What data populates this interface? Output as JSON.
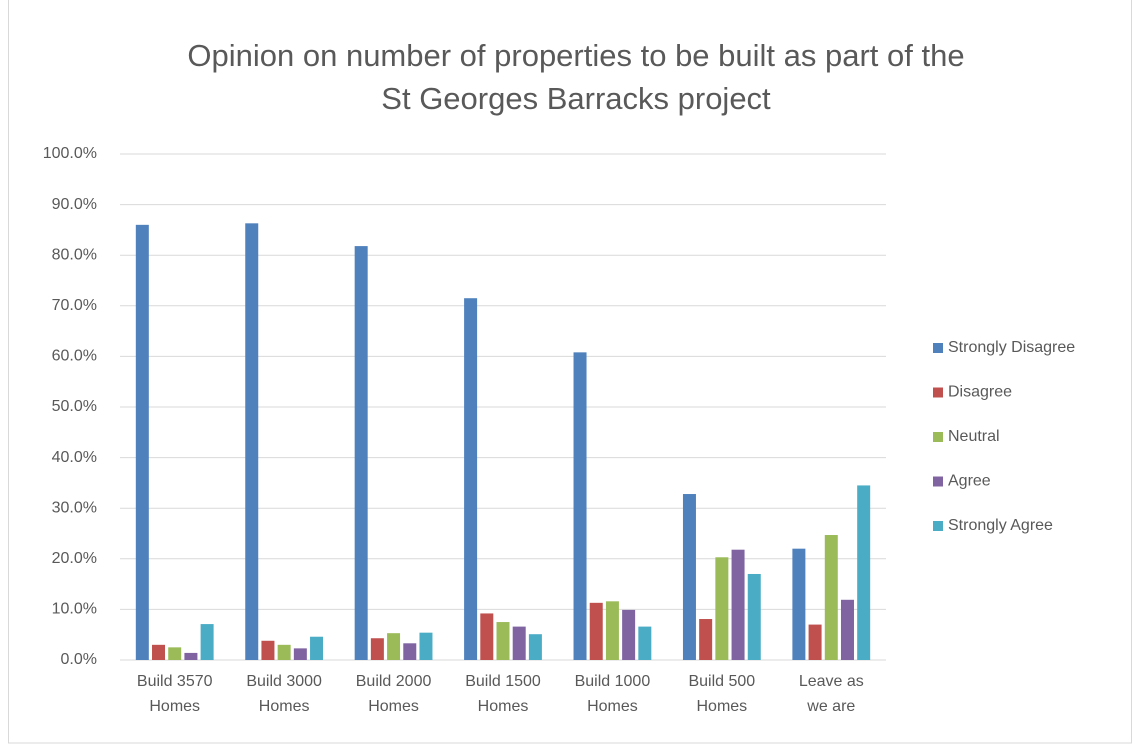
{
  "chart_data": {
    "type": "bar",
    "title": [
      "Opinion on number of properties to be built as part of the",
      "St Georges Barracks project"
    ],
    "categories": [
      [
        "Build 3570",
        "Homes"
      ],
      [
        "Build 3000",
        "Homes"
      ],
      [
        "Build 2000",
        "Homes"
      ],
      [
        "Build 1500",
        "Homes"
      ],
      [
        "Build 1000",
        "Homes"
      ],
      [
        "Build 500",
        "Homes"
      ],
      [
        "Leave as",
        "we are"
      ]
    ],
    "series": [
      {
        "name": "Strongly Disagree",
        "color": "#4f81bd",
        "values": [
          86.0,
          86.3,
          81.8,
          71.5,
          60.8,
          32.8,
          22.0
        ]
      },
      {
        "name": "Disagree",
        "color": "#c0504d",
        "values": [
          3.0,
          3.8,
          4.3,
          9.2,
          11.3,
          8.1,
          7.0
        ]
      },
      {
        "name": "Neutral",
        "color": "#9bbb59",
        "values": [
          2.5,
          3.0,
          5.3,
          7.5,
          11.6,
          20.3,
          24.7
        ]
      },
      {
        "name": "Agree",
        "color": "#8064a2",
        "values": [
          1.4,
          2.3,
          3.3,
          6.6,
          9.9,
          21.8,
          11.9
        ]
      },
      {
        "name": "Strongly Agree",
        "color": "#4bacc6",
        "values": [
          7.1,
          4.6,
          5.4,
          5.1,
          6.6,
          17.0,
          34.5
        ]
      }
    ],
    "ylim": [
      0,
      100
    ],
    "yticks": [
      {
        "value": 0,
        "label": "0.0%"
      },
      {
        "value": 10,
        "label": "10.0%"
      },
      {
        "value": 20,
        "label": "20.0%"
      },
      {
        "value": 30,
        "label": "30.0%"
      },
      {
        "value": 40,
        "label": "40.0%"
      },
      {
        "value": 50,
        "label": "50.0%"
      },
      {
        "value": 60,
        "label": "60.0%"
      },
      {
        "value": 70,
        "label": "70.0%"
      },
      {
        "value": 80,
        "label": "80.0%"
      },
      {
        "value": 90,
        "label": "90.0%"
      },
      {
        "value": 100,
        "label": "100.0%"
      }
    ],
    "grid": true,
    "legend": "right"
  }
}
